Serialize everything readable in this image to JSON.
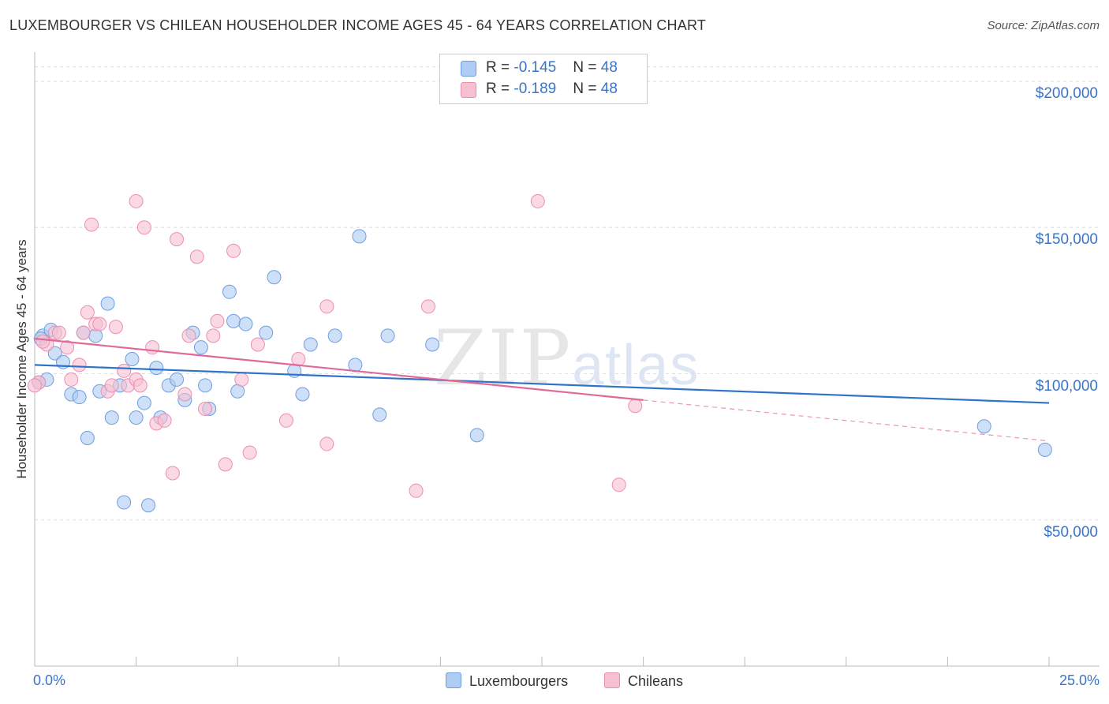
{
  "title": "LUXEMBOURGER VS CHILEAN HOUSEHOLDER INCOME AGES 45 - 64 YEARS CORRELATION CHART",
  "source": "Source: ZipAtlas.com",
  "watermark": {
    "zip": "ZIP",
    "atlas": "atlas"
  },
  "legend": {
    "rows": [
      {
        "r_label": "R = ",
        "r_value": "-0.145",
        "n_label": "N = ",
        "n_value": "48",
        "color": "#aeccf4"
      },
      {
        "r_label": "R = ",
        "r_value": "-0.189",
        "n_label": "N = ",
        "n_value": "48",
        "color": "#f7bfd2"
      }
    ]
  },
  "chart_data": {
    "type": "scatter",
    "title": "LUXEMBOURGER VS CHILEAN HOUSEHOLDER INCOME AGES 45 - 64 YEARS CORRELATION CHART",
    "xlabel": "",
    "ylabel": "Householder Income Ages 45 - 64 years",
    "xlim": [
      0,
      25
    ],
    "ylim": [
      0,
      210000
    ],
    "x_tick_labels": [
      "0.0%",
      "25.0%"
    ],
    "y_tick_labels": [
      "$50,000",
      "$100,000",
      "$150,000",
      "$200,000"
    ],
    "y_ticks": [
      50000,
      100000,
      150000,
      200000
    ],
    "grid": true,
    "legend_position": "top-center",
    "series": [
      {
        "name": "Luxembourgers",
        "color": "#aeccf4",
        "stroke": "#6d9ee0",
        "line_color": "#2f72c9",
        "trend": {
          "x": [
            0,
            25
          ],
          "y": [
            103000,
            90000
          ],
          "dashed_from": null
        },
        "points": [
          [
            0.2,
            113000
          ],
          [
            0.4,
            115000
          ],
          [
            0.3,
            98000
          ],
          [
            0.5,
            107000
          ],
          [
            0.7,
            104000
          ],
          [
            0.9,
            93000
          ],
          [
            1.1,
            92000
          ],
          [
            1.2,
            114000
          ],
          [
            1.3,
            78000
          ],
          [
            1.5,
            113000
          ],
          [
            1.6,
            94000
          ],
          [
            1.8,
            124000
          ],
          [
            1.9,
            85000
          ],
          [
            2.1,
            96000
          ],
          [
            2.2,
            56000
          ],
          [
            2.4,
            105000
          ],
          [
            2.5,
            85000
          ],
          [
            2.7,
            90000
          ],
          [
            2.8,
            55000
          ],
          [
            3.0,
            102000
          ],
          [
            3.1,
            85000
          ],
          [
            3.3,
            96000
          ],
          [
            3.5,
            98000
          ],
          [
            3.7,
            91000
          ],
          [
            3.9,
            114000
          ],
          [
            4.1,
            109000
          ],
          [
            4.3,
            88000
          ],
          [
            4.2,
            96000
          ],
          [
            4.8,
            128000
          ],
          [
            4.9,
            118000
          ],
          [
            5.0,
            94000
          ],
          [
            5.2,
            117000
          ],
          [
            5.7,
            114000
          ],
          [
            5.9,
            133000
          ],
          [
            6.4,
            101000
          ],
          [
            6.6,
            93000
          ],
          [
            6.8,
            110000
          ],
          [
            7.4,
            113000
          ],
          [
            7.9,
            103000
          ],
          [
            8.0,
            147000
          ],
          [
            8.5,
            86000
          ],
          [
            8.7,
            113000
          ],
          [
            9.8,
            110000
          ],
          [
            10.9,
            79000
          ],
          [
            23.4,
            82000
          ],
          [
            24.9,
            74000
          ],
          [
            0.15,
            112000
          ],
          [
            0.1,
            97000
          ]
        ]
      },
      {
        "name": "Chileans",
        "color": "#f7bfd2",
        "stroke": "#ea8fb0",
        "line_color": "#e0689a",
        "trend": {
          "x": [
            0,
            15
          ],
          "y": [
            112000,
            91000
          ],
          "dashed_to": [
            25,
            77000
          ]
        },
        "points": [
          [
            0.1,
            97000
          ],
          [
            0.3,
            110000
          ],
          [
            0.5,
            114000
          ],
          [
            0.6,
            114000
          ],
          [
            0.8,
            109000
          ],
          [
            0.9,
            98000
          ],
          [
            1.1,
            103000
          ],
          [
            1.2,
            114000
          ],
          [
            1.3,
            121000
          ],
          [
            1.4,
            151000
          ],
          [
            1.5,
            117000
          ],
          [
            1.6,
            117000
          ],
          [
            1.8,
            94000
          ],
          [
            1.9,
            96000
          ],
          [
            2.0,
            116000
          ],
          [
            2.2,
            101000
          ],
          [
            2.3,
            96000
          ],
          [
            2.5,
            98000
          ],
          [
            2.5,
            159000
          ],
          [
            2.6,
            96000
          ],
          [
            2.7,
            150000
          ],
          [
            2.9,
            109000
          ],
          [
            3.0,
            83000
          ],
          [
            3.2,
            84000
          ],
          [
            3.4,
            66000
          ],
          [
            3.5,
            146000
          ],
          [
            3.7,
            93000
          ],
          [
            3.8,
            113000
          ],
          [
            4.0,
            140000
          ],
          [
            4.2,
            88000
          ],
          [
            4.4,
            113000
          ],
          [
            4.5,
            118000
          ],
          [
            4.7,
            69000
          ],
          [
            4.9,
            142000
          ],
          [
            5.1,
            98000
          ],
          [
            5.3,
            73000
          ],
          [
            5.5,
            110000
          ],
          [
            6.2,
            84000
          ],
          [
            6.5,
            105000
          ],
          [
            7.2,
            123000
          ],
          [
            7.2,
            76000
          ],
          [
            9.4,
            60000
          ],
          [
            9.7,
            123000
          ],
          [
            12.4,
            159000
          ],
          [
            14.4,
            62000
          ],
          [
            14.8,
            89000
          ],
          [
            0.0,
            96000
          ],
          [
            0.2,
            111000
          ]
        ]
      }
    ]
  },
  "bottom_legend": [
    {
      "label": "Luxembourgers",
      "color": "#aeccf4"
    },
    {
      "label": "Chileans",
      "color": "#f7bfd2"
    }
  ]
}
